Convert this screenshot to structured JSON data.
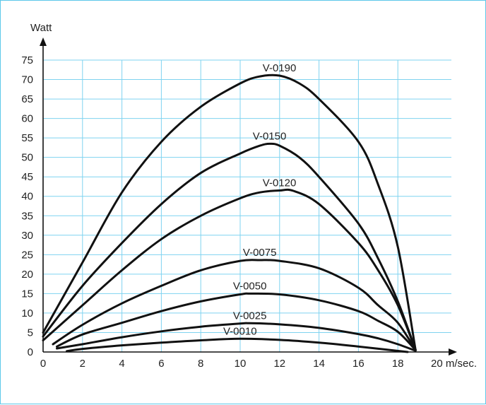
{
  "chart_data": {
    "type": "line",
    "xlabel": "m/sec.",
    "ylabel": "Watt",
    "xlim": [
      0,
      20
    ],
    "ylim": [
      0,
      75
    ],
    "x_ticks": [
      "0",
      "2",
      "4",
      "6",
      "8",
      "10",
      "12",
      "14",
      "16",
      "18",
      "20 m/sec."
    ],
    "y_ticks": [
      "0",
      "5",
      "10",
      "15",
      "20",
      "25",
      "30",
      "35",
      "40",
      "45",
      "50",
      "55",
      "60",
      "65",
      "70",
      "75"
    ],
    "grid": true,
    "grid_color": "#7fd3f0",
    "line_color": "#111111",
    "series": [
      {
        "name": "V-0190",
        "x": [
          0,
          2,
          4,
          6,
          8,
          10,
          11,
          12,
          13,
          14,
          16,
          17,
          18,
          18.9
        ],
        "y": [
          5,
          23,
          41,
          54,
          63,
          69,
          70.8,
          71,
          69,
          65,
          54,
          43,
          27,
          0.5
        ]
      },
      {
        "name": "V-0150",
        "x": [
          0,
          2,
          4,
          6,
          8,
          10,
          11,
          11.5,
          12,
          13,
          14,
          16,
          17,
          18,
          18.9
        ],
        "y": [
          4,
          17,
          28,
          38,
          46,
          51,
          53,
          53.5,
          53,
          50,
          45,
          33,
          24,
          13,
          0.5
        ]
      },
      {
        "name": "V-0120",
        "x": [
          0,
          2,
          4,
          6,
          8,
          10,
          11,
          12,
          12.7,
          14,
          16,
          17,
          18,
          18.9
        ],
        "y": [
          3,
          12,
          21,
          29,
          35,
          39.5,
          41,
          41.5,
          41.4,
          38,
          28,
          21,
          12,
          0.5
        ]
      },
      {
        "name": "V-0075",
        "x": [
          0.5,
          2,
          4,
          6,
          8,
          10,
          11,
          12,
          14,
          16,
          17,
          18,
          18.9
        ],
        "y": [
          2,
          7,
          12.5,
          17,
          21,
          23.4,
          23.6,
          23.4,
          21.5,
          16.5,
          12,
          7.5,
          0.5
        ]
      },
      {
        "name": "V-0050",
        "x": [
          0.7,
          2,
          4,
          6,
          8,
          10,
          10.5,
          12,
          14,
          16,
          17,
          18,
          18.9
        ],
        "y": [
          1.4,
          4.5,
          7.5,
          10.5,
          13,
          14.8,
          15,
          14.8,
          13.3,
          10.5,
          8,
          5.2,
          0.5
        ]
      },
      {
        "name": "V-0025",
        "x": [
          0.7,
          2,
          4,
          6,
          8,
          10,
          10.5,
          12,
          14,
          16,
          17,
          18,
          18.9
        ],
        "y": [
          0.9,
          2,
          3.8,
          5.3,
          6.5,
          7.3,
          7.4,
          7.1,
          6.2,
          4.6,
          3.5,
          2,
          0.3
        ]
      },
      {
        "name": "V-0010",
        "x": [
          1.2,
          2,
          4,
          6,
          8,
          10,
          12,
          14,
          16,
          18.5
        ],
        "y": [
          0.2,
          0.8,
          1.7,
          2.4,
          3,
          3.4,
          3.1,
          2.4,
          1.4,
          0
        ]
      }
    ]
  }
}
